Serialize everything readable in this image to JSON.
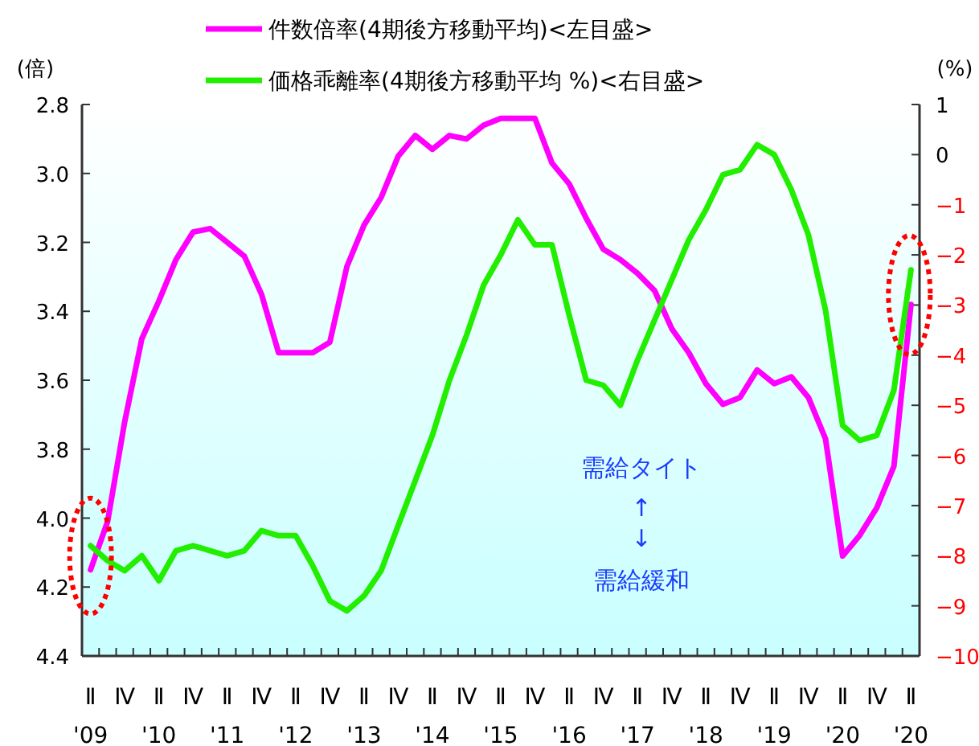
{
  "chart_data": {
    "type": "line",
    "ylabel": "(倍)",
    "y2label": "(%)",
    "categories": [
      "Ⅱ\n'09",
      null,
      "Ⅳ",
      null,
      "Ⅱ\n'10",
      null,
      "Ⅳ",
      null,
      "Ⅱ\n'11",
      null,
      "Ⅳ",
      null,
      "Ⅱ\n'12",
      null,
      "Ⅳ",
      null,
      "Ⅱ\n'13",
      null,
      "Ⅳ",
      null,
      "Ⅱ\n'14",
      null,
      "Ⅳ",
      null,
      "Ⅱ\n'15",
      null,
      "Ⅳ",
      null,
      "Ⅱ\n'16",
      null,
      "Ⅳ",
      null,
      "Ⅱ\n'17",
      null,
      "Ⅳ",
      null,
      "Ⅱ\n'18",
      null,
      "Ⅳ",
      null,
      "Ⅱ\n'19",
      null,
      "Ⅳ",
      null,
      "Ⅱ\n'20",
      null,
      "Ⅳ",
      null,
      "Ⅱ\n'20"
    ],
    "series": [
      {
        "name": "件数倍率(4期後方移動平均)<左目盛>",
        "color": "#ff00ff",
        "values": [
          4.15,
          4.01,
          3.72,
          3.48,
          3.37,
          3.25,
          3.17,
          3.16,
          3.2,
          3.24,
          3.35,
          3.52,
          3.52,
          3.52,
          3.49,
          3.27,
          3.15,
          3.07,
          2.95,
          2.89,
          2.93,
          2.89,
          2.9,
          2.86,
          2.84,
          2.84,
          2.84,
          2.97,
          3.03,
          3.13,
          3.22,
          3.25,
          3.29,
          3.34,
          3.45,
          3.52,
          3.61,
          3.67,
          3.65,
          3.57,
          3.61,
          3.59,
          3.65,
          3.77,
          4.11,
          4.05,
          3.97,
          3.85,
          3.38
        ]
      },
      {
        "name": "価格乖離率(4期後方移動平均 %)<右目盛>",
        "color": "#22ee00",
        "axis": "y2",
        "values": [
          -7.8,
          -8.1,
          -8.3,
          -8.0,
          -8.5,
          -7.9,
          -7.8,
          -7.9,
          -8.0,
          -7.9,
          -7.5,
          -7.6,
          -7.6,
          -8.2,
          -8.9,
          -9.1,
          -8.8,
          -8.3,
          -7.4,
          -6.5,
          -5.6,
          -4.5,
          -3.6,
          -2.6,
          -2.0,
          -1.3,
          -1.8,
          -1.8,
          -3.2,
          -4.5,
          -4.6,
          -5.0,
          -4.1,
          -3.3,
          -2.5,
          -1.7,
          -1.1,
          -0.4,
          -0.3,
          0.2,
          0.0,
          -0.7,
          -1.6,
          -3.1,
          -5.4,
          -5.7,
          -5.6,
          -4.7,
          -2.3
        ]
      }
    ],
    "ylim": [
      4.4,
      2.8
    ],
    "yticks": [
      2.8,
      {
        "value": 3.0,
        "label": "3.0"
      },
      3.2,
      3.4,
      3.6,
      3.8,
      {
        "value": 4.0,
        "label": "4.0"
      },
      4.2,
      4.4
    ],
    "y2lim": [
      -10,
      1
    ],
    "y2ticks": [
      1,
      0,
      {
        "value": -1,
        "label": "−1"
      },
      {
        "value": -2,
        "label": "−2"
      },
      {
        "value": -3,
        "label": "−3"
      },
      {
        "value": -4,
        "label": "−4"
      },
      {
        "value": -5,
        "label": "−5"
      },
      {
        "value": -6,
        "label": "−6"
      },
      {
        "value": -7,
        "label": "−7"
      },
      {
        "value": -8,
        "label": "−8"
      },
      {
        "value": -9,
        "label": "−9"
      },
      {
        "value": -10,
        "label": "−10"
      }
    ],
    "annotations": [
      "需給タイト",
      "↑",
      "↓",
      "需給緩和"
    ],
    "legend": "top",
    "grid": false,
    "marker": "none",
    "line_style": "solid"
  }
}
